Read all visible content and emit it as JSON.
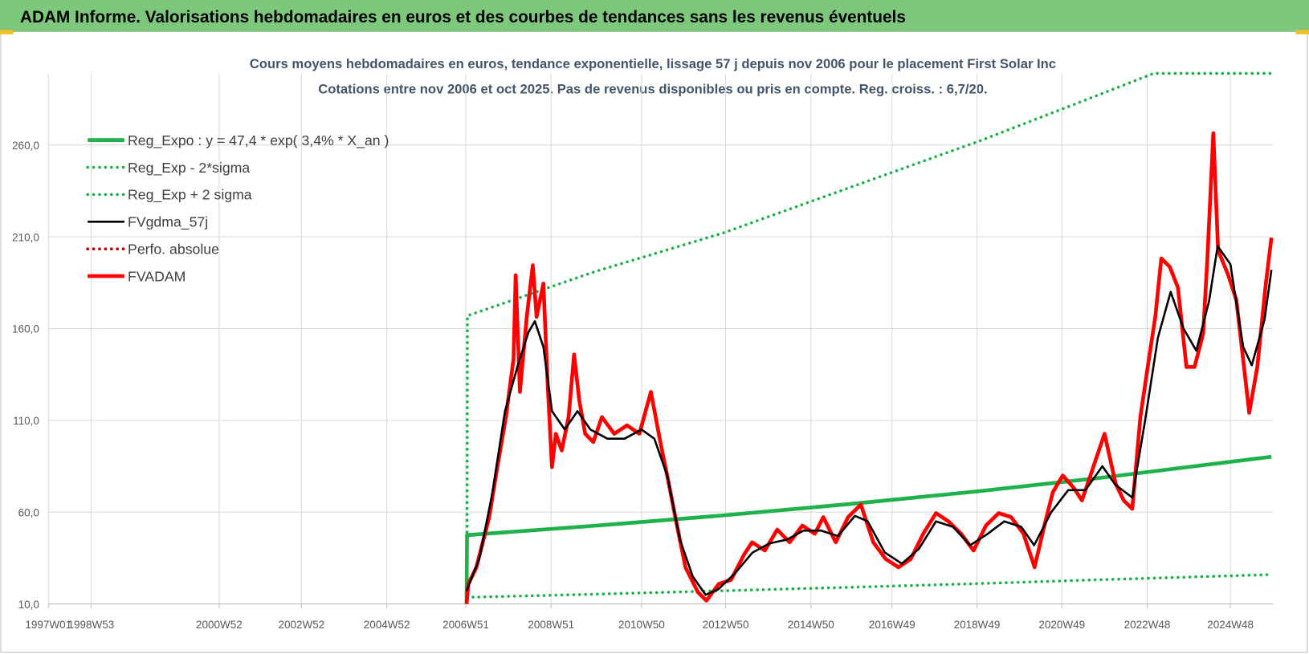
{
  "header": {
    "title": "ADAM Informe. Valorisations hebdomadaires en euros et des courbes de tendances sans les revenus éventuels"
  },
  "chart_data": {
    "type": "line",
    "title": "Cours moyens hebdomadaires en euros, tendance exponentielle, lissage 57 j depuis nov 2006 pour le placement First Solar Inc",
    "subtitle": "Cotations entre nov 2006 et oct 2025. Pas de revenus disponibles ou pris en compte. Reg. croiss. : 6,7/20.",
    "xlim": [
      1997.2,
      2025.9
    ],
    "xticks": [
      {
        "value": 1997.2,
        "label": "1997W01"
      },
      {
        "value": 1998.2,
        "label": "1998W53"
      },
      {
        "value": 2001.2,
        "label": "2000W52"
      },
      {
        "value": 2003.13,
        "label": "2002W52"
      },
      {
        "value": 2005.13,
        "label": "2004W52"
      },
      {
        "value": 2006.98,
        "label": "2006W51"
      },
      {
        "value": 2008.98,
        "label": "2008W51"
      },
      {
        "value": 2011.1,
        "label": "2010W50"
      },
      {
        "value": 2013.07,
        "label": "2012W50"
      },
      {
        "value": 2015.07,
        "label": "2014W50"
      },
      {
        "value": 2016.97,
        "label": "2016W49"
      },
      {
        "value": 2018.96,
        "label": "2018W49"
      },
      {
        "value": 2020.95,
        "label": "2020W49"
      },
      {
        "value": 2022.95,
        "label": "2022W48"
      },
      {
        "value": 2024.9,
        "label": "2024W48"
      }
    ],
    "ylim": [
      10,
      299
    ],
    "yticks": [
      {
        "value": 10,
        "label": "10,0"
      },
      {
        "value": 60,
        "label": "60,0"
      },
      {
        "value": 110,
        "label": "110,0"
      },
      {
        "value": 160,
        "label": "160,0"
      },
      {
        "value": 210,
        "label": "210,0"
      },
      {
        "value": 260,
        "label": "260,0"
      }
    ],
    "grid": true,
    "legend": "upper left",
    "series": [
      {
        "name": "Reg_Expo : y = 47,4 * exp( 3,4% *  X_an )",
        "color": "#1fb14b",
        "dash": "solid",
        "x": [
          2007.0,
          2007.01,
          2010,
          2013,
          2016,
          2019,
          2022,
          2025.86
        ],
        "values": [
          10,
          47.5,
          52.6,
          58.2,
          64.5,
          71.4,
          79.1,
          90.2
        ]
      },
      {
        "name": "Reg_Exp - 2*sigma",
        "color": "#1fb14b",
        "dash": "dotted",
        "x": [
          2007.01,
          2010,
          2013,
          2016,
          2019,
          2022,
          2025.86
        ],
        "values": [
          13.6,
          15.3,
          17.2,
          19.1,
          21.1,
          23.3,
          26
        ]
      },
      {
        "name": "Reg_Exp + 2 sigma",
        "color": "#1fb14b",
        "dash": "dotted",
        "x": [
          2007.01,
          2007.02,
          2010,
          2013,
          2016,
          2019,
          2022,
          2023.1,
          2025.86
        ],
        "values": [
          13.6,
          167,
          191,
          212,
          237,
          262,
          289,
          299,
          299
        ]
      },
      {
        "name": "FVgdma_57j",
        "color": "#000000",
        "dash": "solid",
        "x": [
          2007.0,
          2007.3,
          2007.6,
          2007.9,
          2008.2,
          2008.45,
          2008.6,
          2008.8,
          2009.0,
          2009.3,
          2009.6,
          2009.9,
          2010.3,
          2010.7,
          2011.1,
          2011.4,
          2011.7,
          2012.0,
          2012.3,
          2012.6,
          2012.9,
          2013.3,
          2013.7,
          2014.1,
          2014.5,
          2014.9,
          2015.3,
          2015.7,
          2016.1,
          2016.4,
          2016.8,
          2017.2,
          2017.6,
          2018.0,
          2018.4,
          2018.8,
          2019.2,
          2019.6,
          2020.0,
          2020.3,
          2020.7,
          2021.1,
          2021.5,
          2021.9,
          2022.2,
          2022.6,
          2022.9,
          2023.2,
          2023.5,
          2023.8,
          2024.1,
          2024.4,
          2024.6,
          2024.9,
          2025.2,
          2025.4,
          2025.7,
          2025.86
        ],
        "values": [
          17,
          35,
          70,
          115,
          140,
          158,
          164,
          150,
          115,
          105,
          115,
          105,
          100,
          100,
          105,
          100,
          80,
          45,
          25,
          15,
          18,
          27,
          38,
          43,
          45,
          50,
          50,
          47,
          58,
          55,
          38,
          32,
          40,
          55,
          52,
          42,
          48,
          55,
          52,
          42,
          60,
          72,
          72,
          85,
          75,
          68,
          110,
          155,
          180,
          160,
          148,
          175,
          205,
          195,
          150,
          140,
          165,
          192
        ]
      },
      {
        "name": "Perfo. absolue",
        "color": "#c00000",
        "dash": "dotted",
        "x": [],
        "values": []
      },
      {
        "name": "FVADAM",
        "color": "#ff0000",
        "dash": "solid",
        "x": [
          2007.0,
          2007.04,
          2007.23,
          2007.53,
          2007.72,
          2007.92,
          2008.1,
          2008.15,
          2008.25,
          2008.41,
          2008.55,
          2008.64,
          2008.8,
          2008.9,
          2009.0,
          2009.09,
          2009.23,
          2009.39,
          2009.52,
          2009.64,
          2009.78,
          2009.97,
          2010.17,
          2010.46,
          2010.76,
          2011.05,
          2011.32,
          2011.54,
          2011.74,
          2011.89,
          2012.13,
          2012.42,
          2012.62,
          2012.91,
          2013.2,
          2013.5,
          2013.69,
          2013.99,
          2014.28,
          2014.57,
          2014.87,
          2015.16,
          2015.36,
          2015.65,
          2015.94,
          2016.24,
          2016.53,
          2016.82,
          2017.12,
          2017.41,
          2017.7,
          2018.0,
          2018.29,
          2018.59,
          2018.88,
          2019.17,
          2019.47,
          2019.76,
          2020.05,
          2020.31,
          2020.54,
          2020.74,
          2020.97,
          2021.23,
          2021.42,
          2021.62,
          2021.95,
          2022.21,
          2022.4,
          2022.6,
          2022.79,
          2022.99,
          2023.14,
          2023.28,
          2023.48,
          2023.67,
          2023.87,
          2024.06,
          2024.26,
          2024.36,
          2024.5,
          2024.61,
          2024.85,
          2025.04,
          2025.24,
          2025.34,
          2025.53,
          2025.73,
          2025.86
        ],
        "values": [
          10,
          20.9,
          30,
          57.3,
          84.5,
          111.8,
          143.6,
          189.1,
          125.5,
          166.4,
          194.5,
          166.4,
          184.5,
          130,
          84.5,
          102.7,
          93.6,
          111.8,
          145.9,
          120.9,
          102.7,
          98.2,
          111.8,
          102.7,
          107.3,
          102.7,
          125.5,
          98.2,
          75.5,
          57.3,
          30,
          16.4,
          11.8,
          20.9,
          23.2,
          36.8,
          43.6,
          39.1,
          50.5,
          43.6,
          52.7,
          48.2,
          57.3,
          43.6,
          57.3,
          64.1,
          43.6,
          34.5,
          30,
          34.5,
          48.2,
          59.5,
          55,
          48.2,
          39.1,
          52.7,
          59.5,
          57.3,
          48.2,
          30,
          52.7,
          70.9,
          80,
          73.2,
          66.4,
          80,
          102.7,
          75.5,
          66.4,
          61.8,
          111.8,
          143.6,
          166.4,
          198.2,
          193.6,
          182.3,
          139.1,
          139.1,
          157.3,
          198.2,
          266.4,
          202.7,
          189.1,
          175.5,
          134.5,
          114.1,
          139.1,
          184.5,
          209.5
        ]
      }
    ]
  }
}
